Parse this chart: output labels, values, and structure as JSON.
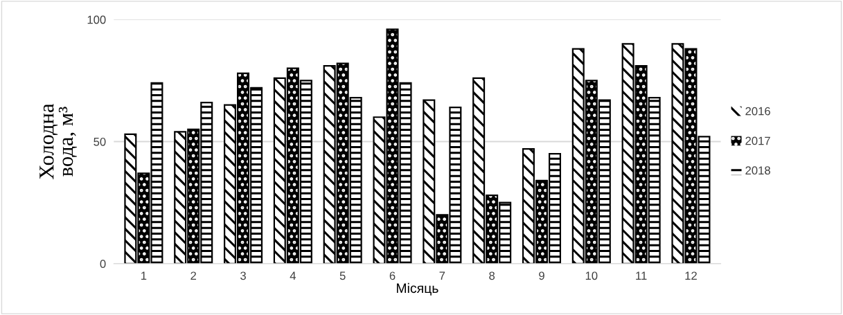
{
  "chart_data": {
    "type": "bar",
    "xlabel": "Місяць",
    "ylabel": "Холодна\nвода, м³",
    "categories": [
      "1",
      "2",
      "3",
      "4",
      "5",
      "6",
      "7",
      "8",
      "9",
      "10",
      "11",
      "12"
    ],
    "series": [
      {
        "name": "2016",
        "color": "#000000",
        "values": [
          53,
          54,
          65,
          76,
          81,
          60,
          67,
          76,
          47,
          88,
          90,
          90
        ]
      },
      {
        "name": "2017",
        "color": "#000000",
        "values": [
          37,
          55,
          78,
          80,
          82,
          96,
          20,
          28,
          34,
          75,
          81,
          88
        ]
      },
      {
        "name": "2018",
        "color": "#000000",
        "values": [
          74,
          66,
          72,
          75,
          68,
          74,
          64,
          25,
          45,
          67,
          68,
          52
        ]
      }
    ],
    "ylim": [
      0,
      100
    ],
    "yticks": [
      0,
      50,
      100
    ],
    "grid": "y",
    "legend": "right"
  }
}
